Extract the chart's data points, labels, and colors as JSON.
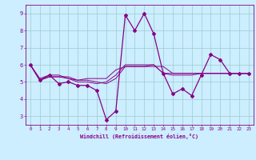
{
  "xlabel": "Windchill (Refroidissement éolien,°C)",
  "background_color": "#cceeff",
  "line_color": "#880088",
  "grid_color": "#99cccc",
  "x_ticks": [
    0,
    1,
    2,
    3,
    4,
    5,
    6,
    7,
    8,
    9,
    10,
    11,
    12,
    13,
    14,
    15,
    16,
    17,
    18,
    19,
    20,
    21,
    22,
    23
  ],
  "y_ticks": [
    3,
    4,
    5,
    6,
    7,
    8,
    9
  ],
  "ylim": [
    2.5,
    9.5
  ],
  "xlim": [
    -0.5,
    23.5
  ],
  "line1_x": [
    0,
    1,
    2,
    3,
    4,
    5,
    6,
    7,
    8,
    9,
    10,
    11,
    12,
    13,
    14,
    15,
    16,
    17,
    18,
    19,
    20,
    21,
    22,
    23
  ],
  "line1_y": [
    6.0,
    5.1,
    5.4,
    4.9,
    5.0,
    4.8,
    4.8,
    4.5,
    2.8,
    3.3,
    8.9,
    8.0,
    9.0,
    7.8,
    5.5,
    4.3,
    4.6,
    4.2,
    5.4,
    6.6,
    6.3,
    5.5,
    5.5,
    5.5
  ],
  "line2_x": [
    0,
    1,
    2,
    3,
    4,
    5,
    6,
    7,
    8,
    9,
    10,
    11,
    12,
    13,
    14,
    15,
    16,
    17,
    18,
    19,
    20,
    21,
    22,
    23
  ],
  "line2_y": [
    6.0,
    5.2,
    5.4,
    5.4,
    5.2,
    5.1,
    5.2,
    5.2,
    5.2,
    5.7,
    5.9,
    5.9,
    5.9,
    5.9,
    5.9,
    5.5,
    5.5,
    5.5,
    5.5,
    5.5,
    5.5,
    5.5,
    5.5,
    5.5
  ],
  "line3_x": [
    0,
    1,
    2,
    3,
    4,
    5,
    6,
    7,
    8,
    9,
    10,
    11,
    12,
    13,
    14,
    15,
    16,
    17,
    18,
    19,
    20,
    21,
    22,
    23
  ],
  "line3_y": [
    6.0,
    5.1,
    5.3,
    5.3,
    5.3,
    5.1,
    5.1,
    5.0,
    4.9,
    5.2,
    5.9,
    5.9,
    5.9,
    6.0,
    5.5,
    5.4,
    5.4,
    5.4,
    5.5,
    5.5,
    5.5,
    5.5,
    5.5,
    5.5
  ],
  "line4_x": [
    0,
    1,
    2,
    3,
    4,
    5,
    6,
    7,
    8,
    9,
    10,
    11,
    12,
    13,
    14,
    15,
    16,
    17,
    18,
    19,
    20,
    21,
    22,
    23
  ],
  "line4_y": [
    6.0,
    5.1,
    5.3,
    5.3,
    5.2,
    5.0,
    5.0,
    4.9,
    5.0,
    5.4,
    6.0,
    6.0,
    6.0,
    6.0,
    5.5,
    5.5,
    5.5,
    5.5,
    5.5,
    5.5,
    5.5,
    5.5,
    5.5,
    5.5
  ]
}
